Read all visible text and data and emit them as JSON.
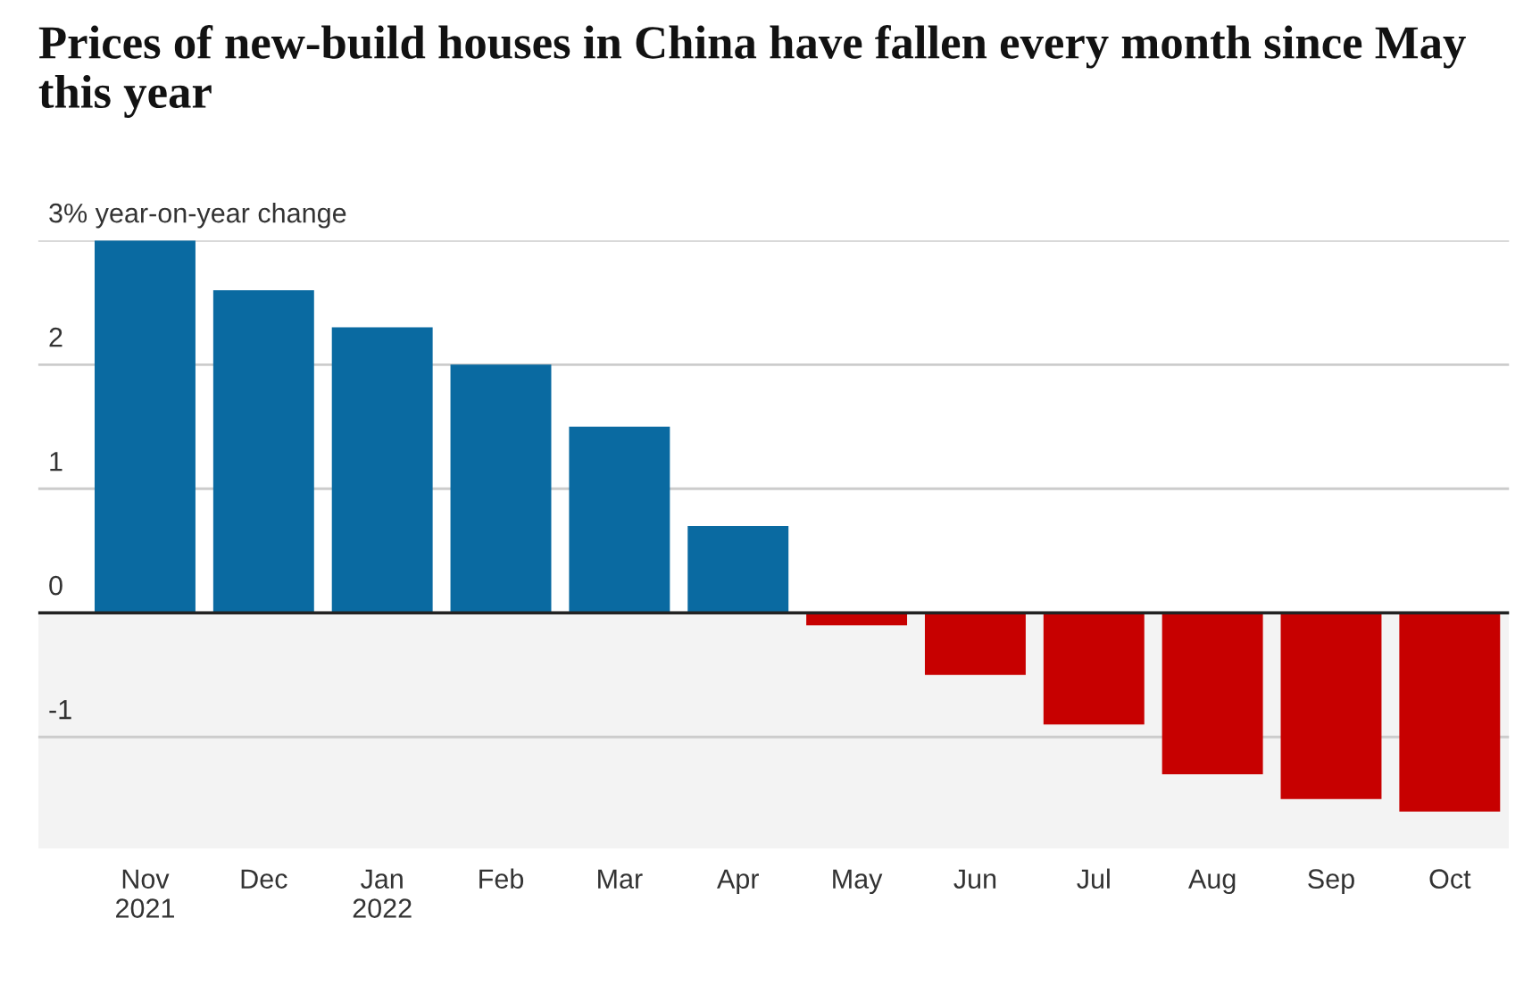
{
  "chart_data": {
    "type": "bar",
    "title": "Prices of new-build houses in China have fallen every month since May this year",
    "categories": [
      "Nov\n2021",
      "Dec",
      "Jan\n2022",
      "Feb",
      "Mar",
      "Apr",
      "May",
      "Jun",
      "Jul",
      "Aug",
      "Sep",
      "Oct"
    ],
    "values": [
      3.0,
      2.6,
      2.3,
      2.0,
      1.5,
      0.7,
      -0.1,
      -0.5,
      -0.9,
      -1.3,
      -1.5,
      -1.6
    ],
    "colors": [
      "#0a6aa1",
      "#0a6aa1",
      "#0a6aa1",
      "#0a6aa1",
      "#0a6aa1",
      "#0a6aa1",
      "#c70000",
      "#c70000",
      "#c70000",
      "#c70000",
      "#c70000",
      "#c70000"
    ],
    "ylim": [
      -1.9,
      3
    ],
    "yticks": [
      {
        "value": 3,
        "label": "3% year-on-year change"
      },
      2,
      1,
      0,
      -1
    ],
    "bands": [
      {
        "axis": "y",
        "from": -1.9,
        "to": 0,
        "color": "#f3f3f3"
      }
    ],
    "grid": "y"
  }
}
